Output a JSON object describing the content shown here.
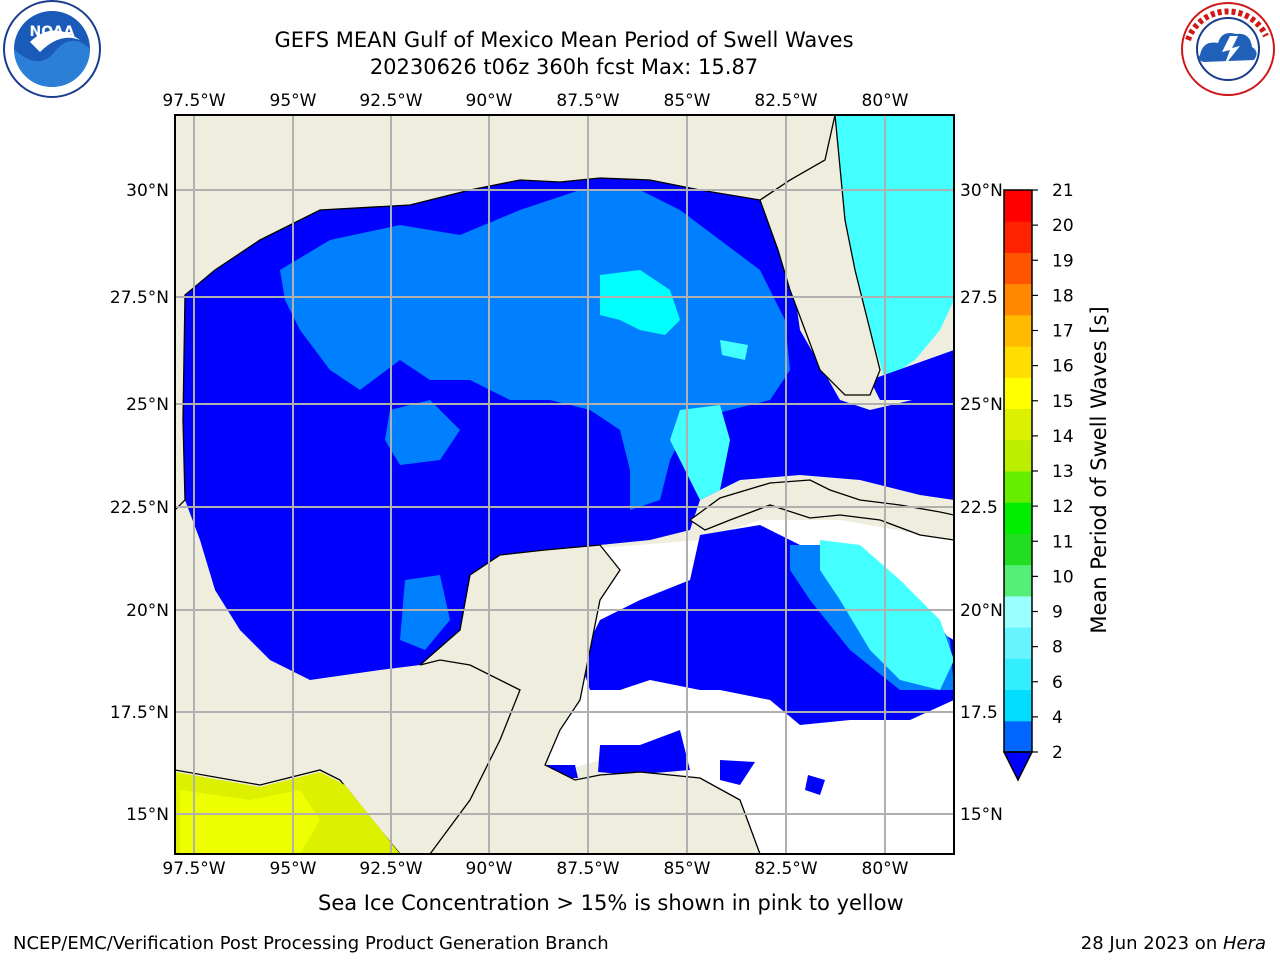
{
  "header": {
    "title_line1": "GEFS MEAN Gulf of Mexico Mean Period of Swell Waves",
    "title_line2": "20230626 t06z 360h fcst   Max: 15.87"
  },
  "logos": {
    "left": {
      "icon": "noaa-logo",
      "text": "NOAA",
      "ring_text": "NATIONAL OCEANIC AND ATMOSPHERIC ADMINISTRATION · U.S. DEPARTMENT OF COMMERCE"
    },
    "right": {
      "icon": "nws-logo",
      "ring_text": "NATIONAL WEATHER SERVICE"
    }
  },
  "map": {
    "lon_labels": [
      "97.5°W",
      "95°W",
      "92.5°W",
      "90°W",
      "87.5°W",
      "85°W",
      "82.5°W",
      "80°W"
    ],
    "lat_labels_left": [
      "30°N",
      "27.5°N",
      "25°N",
      "22.5°N",
      "20°N",
      "17.5°N",
      "15°N"
    ],
    "lat_labels_right": [
      "30°N",
      "27.5",
      "25°N",
      "22.5",
      "20°N",
      "17.5",
      "15°N"
    ],
    "land_color": "#eeedde",
    "grid_color": "#b0b0b0"
  },
  "colorbar": {
    "label": "Mean Period of Swell Waves [s]",
    "ticks": [
      "2",
      "4",
      "6",
      "8",
      "9",
      "10",
      "11",
      "12",
      "13",
      "14",
      "15",
      "16",
      "17",
      "18",
      "19",
      "20",
      "21"
    ],
    "colors": [
      "#0066ff",
      "#00ddff",
      "#33eeff",
      "#66f5ff",
      "#99ffff",
      "#55ee77",
      "#22dd22",
      "#00ee00",
      "#66ee00",
      "#bbee00",
      "#ddf000",
      "#ffff00",
      "#ffdd00",
      "#ffbb00",
      "#ff8800",
      "#ff5500",
      "#ff2200",
      "#ff0000"
    ],
    "extend_color": "#0000ff"
  },
  "captions": {
    "ice_note": "Sea Ice Concentration > 15% is shown in pink to yellow",
    "footer_left": "NCEP/EMC/Verification Post Processing Product Generation Branch",
    "footer_right_date": "28 Jun 2023 on ",
    "footer_right_machine": "Hera"
  }
}
